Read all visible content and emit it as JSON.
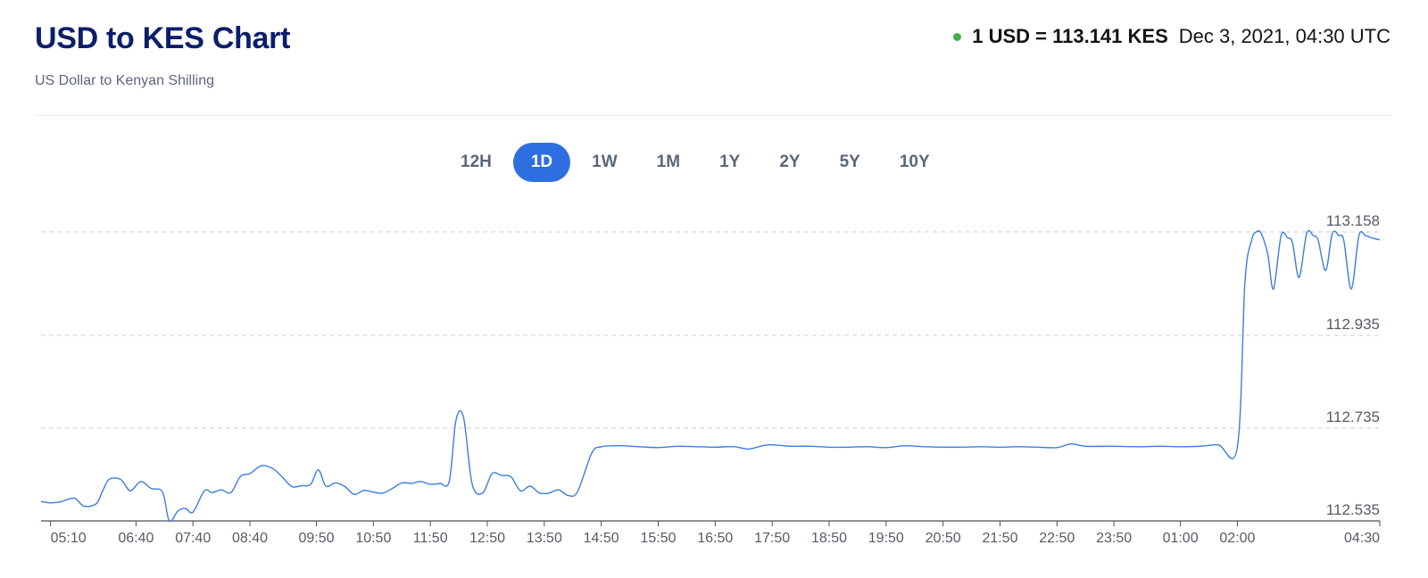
{
  "header": {
    "title": "USD to KES Chart",
    "subtitle": "US Dollar to Kenyan Shilling",
    "rate": "1 USD = 113.141 KES",
    "timestamp": "Dec 3, 2021, 04:30 UTC"
  },
  "tabs": [
    {
      "label": "12H",
      "active": false
    },
    {
      "label": "1D",
      "active": true
    },
    {
      "label": "1W",
      "active": false
    },
    {
      "label": "1M",
      "active": false
    },
    {
      "label": "1Y",
      "active": false
    },
    {
      "label": "2Y",
      "active": false
    },
    {
      "label": "5Y",
      "active": false
    },
    {
      "label": "10Y",
      "active": false
    }
  ],
  "colors": {
    "title": "#0c1e6b",
    "accent": "#2d6fe0",
    "line": "#3b7ddd",
    "live_dot": "#3cb34a"
  },
  "chart_data": {
    "type": "line",
    "title": "",
    "xlabel": "",
    "ylabel": "",
    "x_ticks": [
      "05:10",
      "06:40",
      "07:40",
      "08:40",
      "09:50",
      "10:50",
      "11:50",
      "12:50",
      "13:50",
      "14:50",
      "15:50",
      "16:50",
      "17:50",
      "18:50",
      "19:50",
      "20:50",
      "21:50",
      "22:50",
      "23:50",
      "01:00",
      "02:00",
      "04:30"
    ],
    "y_ticks": [
      "113.158",
      "112.935",
      "112.735",
      "112.535"
    ],
    "ylim": [
      112.535,
      113.158
    ],
    "grid": true,
    "series": [
      {
        "color": "#3b7ddd",
        "points": [
          [
            "05:00",
            112.577
          ],
          [
            "05:10",
            112.574
          ],
          [
            "05:20",
            112.576
          ],
          [
            "05:35",
            112.584
          ],
          [
            "05:45",
            112.567
          ],
          [
            "05:58",
            112.572
          ],
          [
            "06:05",
            112.6
          ],
          [
            "06:12",
            112.625
          ],
          [
            "06:24",
            112.624
          ],
          [
            "06:34",
            112.6
          ],
          [
            "06:45",
            112.62
          ],
          [
            "06:56",
            112.605
          ],
          [
            "07:08",
            112.597
          ],
          [
            "07:15",
            112.535
          ],
          [
            "07:24",
            112.556
          ],
          [
            "07:32",
            112.562
          ],
          [
            "07:40",
            112.554
          ],
          [
            "07:52",
            112.6
          ],
          [
            "08:00",
            112.596
          ],
          [
            "08:10",
            112.602
          ],
          [
            "08:20",
            112.596
          ],
          [
            "08:30",
            112.631
          ],
          [
            "08:40",
            112.637
          ],
          [
            "08:52",
            112.654
          ],
          [
            "09:04",
            112.648
          ],
          [
            "09:14",
            112.63
          ],
          [
            "09:24",
            112.609
          ],
          [
            "09:34",
            112.611
          ],
          [
            "09:44",
            112.614
          ],
          [
            "09:52",
            112.645
          ],
          [
            "10:00",
            112.61
          ],
          [
            "10:10",
            112.617
          ],
          [
            "10:20",
            112.609
          ],
          [
            "10:30",
            112.592
          ],
          [
            "10:40",
            112.601
          ],
          [
            "10:50",
            112.597
          ],
          [
            "11:00",
            112.595
          ],
          [
            "11:10",
            112.605
          ],
          [
            "11:20",
            112.617
          ],
          [
            "11:30",
            112.616
          ],
          [
            "11:40",
            112.62
          ],
          [
            "11:50",
            112.614
          ],
          [
            "12:00",
            112.616
          ],
          [
            "12:10",
            112.621
          ],
          [
            "12:17",
            112.752
          ],
          [
            "12:25",
            112.758
          ],
          [
            "12:34",
            112.615
          ],
          [
            "12:45",
            112.595
          ],
          [
            "12:55",
            112.637
          ],
          [
            "13:05",
            112.633
          ],
          [
            "13:15",
            112.63
          ],
          [
            "13:25",
            112.6
          ],
          [
            "13:35",
            112.61
          ],
          [
            "13:45",
            112.595
          ],
          [
            "13:55",
            112.595
          ],
          [
            "14:05",
            112.602
          ],
          [
            "14:15",
            112.59
          ],
          [
            "14:25",
            112.598
          ],
          [
            "14:40",
            112.681
          ],
          [
            "14:50",
            112.695
          ],
          [
            "15:10",
            112.697
          ],
          [
            "15:30",
            112.695
          ],
          [
            "15:50",
            112.693
          ],
          [
            "16:10",
            112.696
          ],
          [
            "16:30",
            112.695
          ],
          [
            "16:50",
            112.694
          ],
          [
            "17:10",
            112.695
          ],
          [
            "17:25",
            112.69
          ],
          [
            "17:40",
            112.697
          ],
          [
            "17:50",
            112.699
          ],
          [
            "18:10",
            112.696
          ],
          [
            "18:30",
            112.696
          ],
          [
            "18:50",
            112.694
          ],
          [
            "19:10",
            112.694
          ],
          [
            "19:30",
            112.695
          ],
          [
            "19:50",
            112.693
          ],
          [
            "20:10",
            112.697
          ],
          [
            "20:30",
            112.695
          ],
          [
            "20:50",
            112.694
          ],
          [
            "21:10",
            112.694
          ],
          [
            "21:30",
            112.695
          ],
          [
            "21:50",
            112.694
          ],
          [
            "22:10",
            112.695
          ],
          [
            "22:30",
            112.694
          ],
          [
            "22:50",
            112.693
          ],
          [
            "23:05",
            112.701
          ],
          [
            "23:20",
            112.696
          ],
          [
            "23:50",
            112.696
          ],
          [
            "00:15",
            112.695
          ],
          [
            "00:40",
            112.696
          ],
          [
            "01:00",
            112.695
          ],
          [
            "01:20",
            112.696
          ],
          [
            "01:40",
            112.699
          ],
          [
            "02:00",
            112.694
          ],
          [
            "02:08",
            113.05
          ],
          [
            "02:15",
            113.14
          ],
          [
            "02:20",
            113.158
          ],
          [
            "02:25",
            113.155
          ],
          [
            "02:32",
            113.11
          ],
          [
            "02:38",
            113.035
          ],
          [
            "02:46",
            113.15
          ],
          [
            "02:53",
            113.145
          ],
          [
            "02:58",
            113.135
          ],
          [
            "03:05",
            113.06
          ],
          [
            "03:13",
            113.155
          ],
          [
            "03:20",
            113.15
          ],
          [
            "03:25",
            113.14
          ],
          [
            "03:33",
            113.075
          ],
          [
            "03:40",
            113.155
          ],
          [
            "03:47",
            113.15
          ],
          [
            "03:52",
            113.14
          ],
          [
            "04:00",
            113.035
          ],
          [
            "04:08",
            113.15
          ],
          [
            "04:15",
            113.15
          ],
          [
            "04:22",
            113.145
          ],
          [
            "04:30",
            113.141
          ]
        ]
      }
    ]
  }
}
